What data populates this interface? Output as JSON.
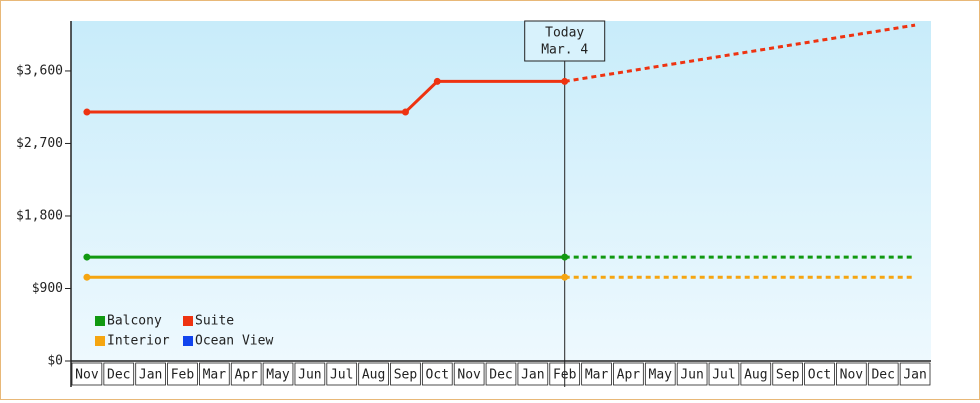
{
  "chart_data": {
    "type": "line",
    "categories": [
      "Nov",
      "Dec",
      "Jan",
      "Feb",
      "Mar",
      "Apr",
      "May",
      "Jun",
      "Jul",
      "Aug",
      "Sep",
      "Oct",
      "Nov",
      "Dec",
      "Jan",
      "Feb",
      "Mar",
      "Apr",
      "May",
      "Jun",
      "Jul",
      "Aug",
      "Sep",
      "Oct",
      "Nov",
      "Dec",
      "Jan"
    ],
    "ylim": [
      0,
      4220
    ],
    "yticks": [
      {
        "value": 0,
        "label": "$0"
      },
      {
        "value": 900,
        "label": "$900"
      },
      {
        "value": 1800,
        "label": "$1,800"
      },
      {
        "value": 2700,
        "label": "$2,700"
      },
      {
        "value": 3600,
        "label": "$3,600"
      }
    ],
    "annotation": [
      "Today",
      "Mar. 4"
    ],
    "legend": "lower left",
    "series": [
      {
        "name": "Balcony",
        "color": "#119911",
        "values": [
          1290,
          1290,
          1290,
          1290,
          1290,
          1290,
          1290,
          1290,
          1290,
          1290,
          1290,
          1290,
          1290,
          1290,
          1290,
          1290,
          null,
          null,
          null,
          null,
          null,
          null,
          null,
          null,
          null,
          null,
          null
        ],
        "forecast": [
          null,
          null,
          null,
          null,
          null,
          null,
          null,
          null,
          null,
          null,
          null,
          null,
          null,
          null,
          null,
          1290,
          1290,
          1290,
          1290,
          1290,
          1290,
          1290,
          1290,
          1290,
          1290,
          1290,
          1290
        ]
      },
      {
        "name": "Suite",
        "color": "#ee3311",
        "values": [
          3090,
          3090,
          3090,
          3090,
          3090,
          3090,
          3090,
          3090,
          3090,
          3090,
          3090,
          3470,
          3470,
          3470,
          3470,
          3470,
          null,
          null,
          null,
          null,
          null,
          null,
          null,
          null,
          null,
          null,
          null
        ],
        "forecast": [
          null,
          null,
          null,
          null,
          null,
          null,
          null,
          null,
          null,
          null,
          null,
          null,
          null,
          null,
          null,
          3470,
          3534,
          3597,
          3661,
          3724,
          3788,
          3851,
          3915,
          3978,
          4042,
          4105,
          4169
        ]
      },
      {
        "name": "Interior",
        "color": "#f5a511",
        "values": [
          1040,
          1040,
          1040,
          1040,
          1040,
          1040,
          1040,
          1040,
          1040,
          1040,
          1040,
          1040,
          1040,
          1040,
          1040,
          1040,
          null,
          null,
          null,
          null,
          null,
          null,
          null,
          null,
          null,
          null,
          null
        ],
        "forecast": [
          null,
          null,
          null,
          null,
          null,
          null,
          null,
          null,
          null,
          null,
          null,
          null,
          null,
          null,
          null,
          1040,
          1040,
          1040,
          1040,
          1040,
          1040,
          1040,
          1040,
          1040,
          1040,
          1040,
          1040
        ]
      },
      {
        "name": "Ocean View",
        "color": "#1144ee",
        "values": [
          null,
          null,
          null,
          null,
          null,
          null,
          null,
          null,
          null,
          null,
          null,
          null,
          null,
          null,
          null,
          null,
          null,
          null,
          null,
          null,
          null,
          null,
          null,
          null,
          null,
          null,
          null
        ],
        "forecast": [
          null,
          null,
          null,
          null,
          null,
          null,
          null,
          null,
          null,
          null,
          null,
          null,
          null,
          null,
          null,
          null,
          null,
          null,
          null,
          null,
          null,
          null,
          null,
          null,
          null,
          null,
          null
        ]
      }
    ]
  }
}
